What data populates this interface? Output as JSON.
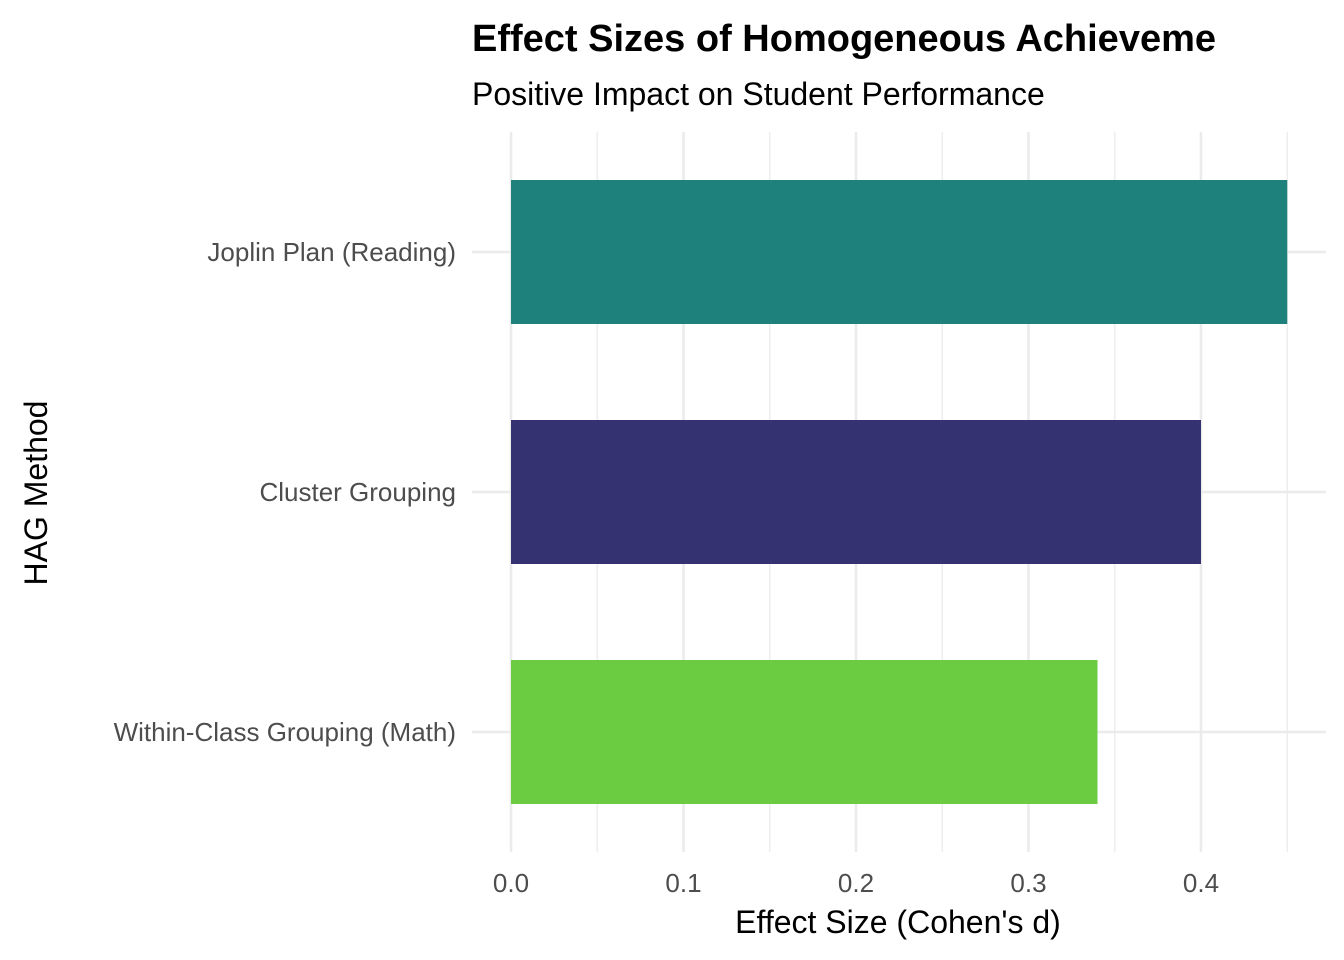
{
  "chart_data": {
    "type": "bar",
    "orientation": "horizontal",
    "title": "Effect Sizes of Homogeneous Achieveme",
    "subtitle": "Positive Impact on Student Performance",
    "xlabel": "Effect Size (Cohen's d)",
    "ylabel": "HAG Method",
    "categories": [
      "Joplin Plan (Reading)",
      "Cluster Grouping",
      "Within-Class Grouping (Math)"
    ],
    "values": [
      0.45,
      0.4,
      0.34
    ],
    "colors": [
      "#1f817b",
      "#353272",
      "#6bcc41"
    ],
    "xlim": [
      0,
      0.47
    ],
    "xticks": [
      0.0,
      0.1,
      0.2,
      0.3,
      0.4
    ],
    "xtick_labels": [
      "0.0",
      "0.1",
      "0.2",
      "0.3",
      "0.4"
    ],
    "grid": true,
    "legend": "none"
  }
}
